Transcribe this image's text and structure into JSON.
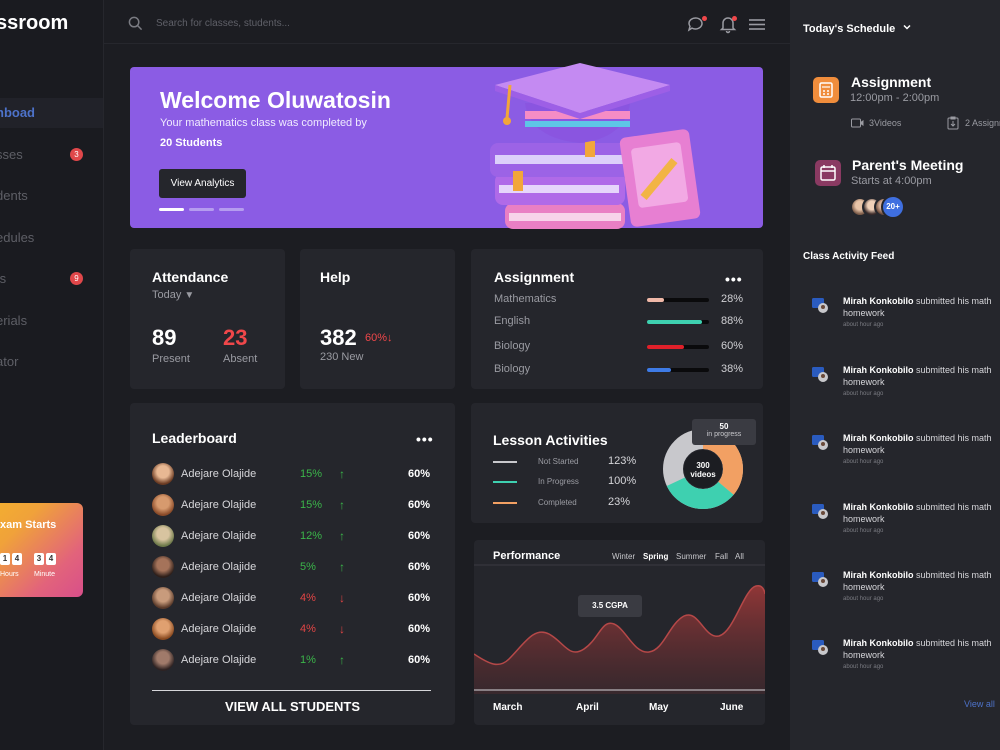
{
  "sidebar": {
    "brand": "ssroom",
    "items": [
      {
        "label": "hboad",
        "badge": ""
      },
      {
        "label": "sses",
        "badge": "3"
      },
      {
        "label": "dents",
        "badge": ""
      },
      {
        "label": "edules",
        "badge": ""
      },
      {
        "label": "ts",
        "badge": "9"
      },
      {
        "label": "erials",
        "badge": ""
      },
      {
        "label": "ator",
        "badge": ""
      }
    ],
    "exam": {
      "title": "xam Starts",
      "digits": [
        "1",
        "4",
        "3",
        "4"
      ],
      "hours_label": "Hours",
      "minute_label": "Minute"
    }
  },
  "search": {
    "placeholder": "Search for classes, students..."
  },
  "banner": {
    "title": "Welcome Oluwatosin",
    "subtitle": "Your mathematics class was completed by",
    "count": "20 Students",
    "button": "View Analytics",
    "colors": {
      "background": "#8b5ce4"
    }
  },
  "attendance": {
    "title": "Attendance",
    "filter": "Today",
    "present_value": "89",
    "present_label": "Present",
    "absent_value": "23",
    "absent_label": "Absent"
  },
  "help": {
    "title": "Help",
    "value": "382",
    "change": "60%↓",
    "sub": "230 New"
  },
  "assignment": {
    "title": "Assignment",
    "rows": [
      {
        "subject": "Mathematics",
        "percent": "28%",
        "value": 0.28,
        "color": "#f0b8a8"
      },
      {
        "subject": "English",
        "percent": "88%",
        "value": 0.88,
        "color": "#3ed0b0"
      },
      {
        "subject": "Biology",
        "percent": "60%",
        "value": 0.6,
        "color": "#e0202a"
      },
      {
        "subject": "Biology",
        "percent": "38%",
        "value": 0.38,
        "color": "#3e7be6"
      }
    ]
  },
  "leaderboard": {
    "title": "Leaderboard",
    "rows": [
      {
        "name": "Adejare Olajide",
        "delta": "15%",
        "dir": "up",
        "score": "60%",
        "arrow": "↑"
      },
      {
        "name": "Adejare Olajide",
        "delta": "15%",
        "dir": "up",
        "score": "60%",
        "arrow": "↑"
      },
      {
        "name": "Adejare Olajide",
        "delta": "12%",
        "dir": "up",
        "score": "60%",
        "arrow": "↑"
      },
      {
        "name": "Adejare Olajide",
        "delta": "5%",
        "dir": "up",
        "score": "60%",
        "arrow": "↑"
      },
      {
        "name": "Adejare Olajide",
        "delta": "4%",
        "dir": "down",
        "score": "60%",
        "arrow": "↓"
      },
      {
        "name": "Adejare Olajide",
        "delta": "4%",
        "dir": "down",
        "score": "60%",
        "arrow": "↓"
      },
      {
        "name": "Adejare Olajide",
        "delta": "1%",
        "dir": "up",
        "score": "60%",
        "arrow": "↑"
      }
    ],
    "view_all": "VIEW ALL STUDENTS"
  },
  "lesson": {
    "title": "Lesson Activities",
    "rows": [
      {
        "label": "Not Started",
        "value": "123%",
        "color": "#c8c8cc"
      },
      {
        "label": "In Progress",
        "value": "100%",
        "color": "#3ed0b0"
      },
      {
        "label": "Completed",
        "value": "23%",
        "color": "#f2a063"
      }
    ],
    "donut_center": "300",
    "donut_center_sub": "videos",
    "tooltip_value": "50",
    "tooltip_label": "in progress"
  },
  "performance": {
    "title": "Performance",
    "tabs": [
      "Winter",
      "Spring",
      "Summer",
      "Fall",
      "All"
    ],
    "active_tab": "Spring",
    "tooltip": "3.5 CGPA",
    "months": [
      "March",
      "April",
      "May",
      "June"
    ]
  },
  "schedule": {
    "title": "Today's Schedule",
    "events": [
      {
        "title": "Assignment",
        "time": "12:00pm - 2:00pm",
        "videos": "3Videos",
        "assignments": "2 Assignm"
      },
      {
        "title": "Parent's Meeting",
        "time": "Starts at 4:00pm",
        "extra": "20+"
      }
    ]
  },
  "feed": {
    "title": "Class Activity Feed",
    "items": [
      {
        "name": "Mirah Konkobilo",
        "text": "submitted his math homework",
        "time": "about hour ago"
      },
      {
        "name": "Mirah Konkobilo",
        "text": "submitted his math homework",
        "time": "about hour ago"
      },
      {
        "name": "Mirah Konkobilo",
        "text": "submitted his math homework",
        "time": "about hour ago"
      },
      {
        "name": "Mirah Konkobilo",
        "text": "submitted his math homework",
        "time": "about hour ago"
      },
      {
        "name": "Mirah Konkobilo",
        "text": "submitted his math homework",
        "time": "about hour ago"
      },
      {
        "name": "Mirah Konkobilo",
        "text": "submitted his math homework",
        "time": "about hour ago"
      }
    ],
    "view_all": "View all"
  }
}
